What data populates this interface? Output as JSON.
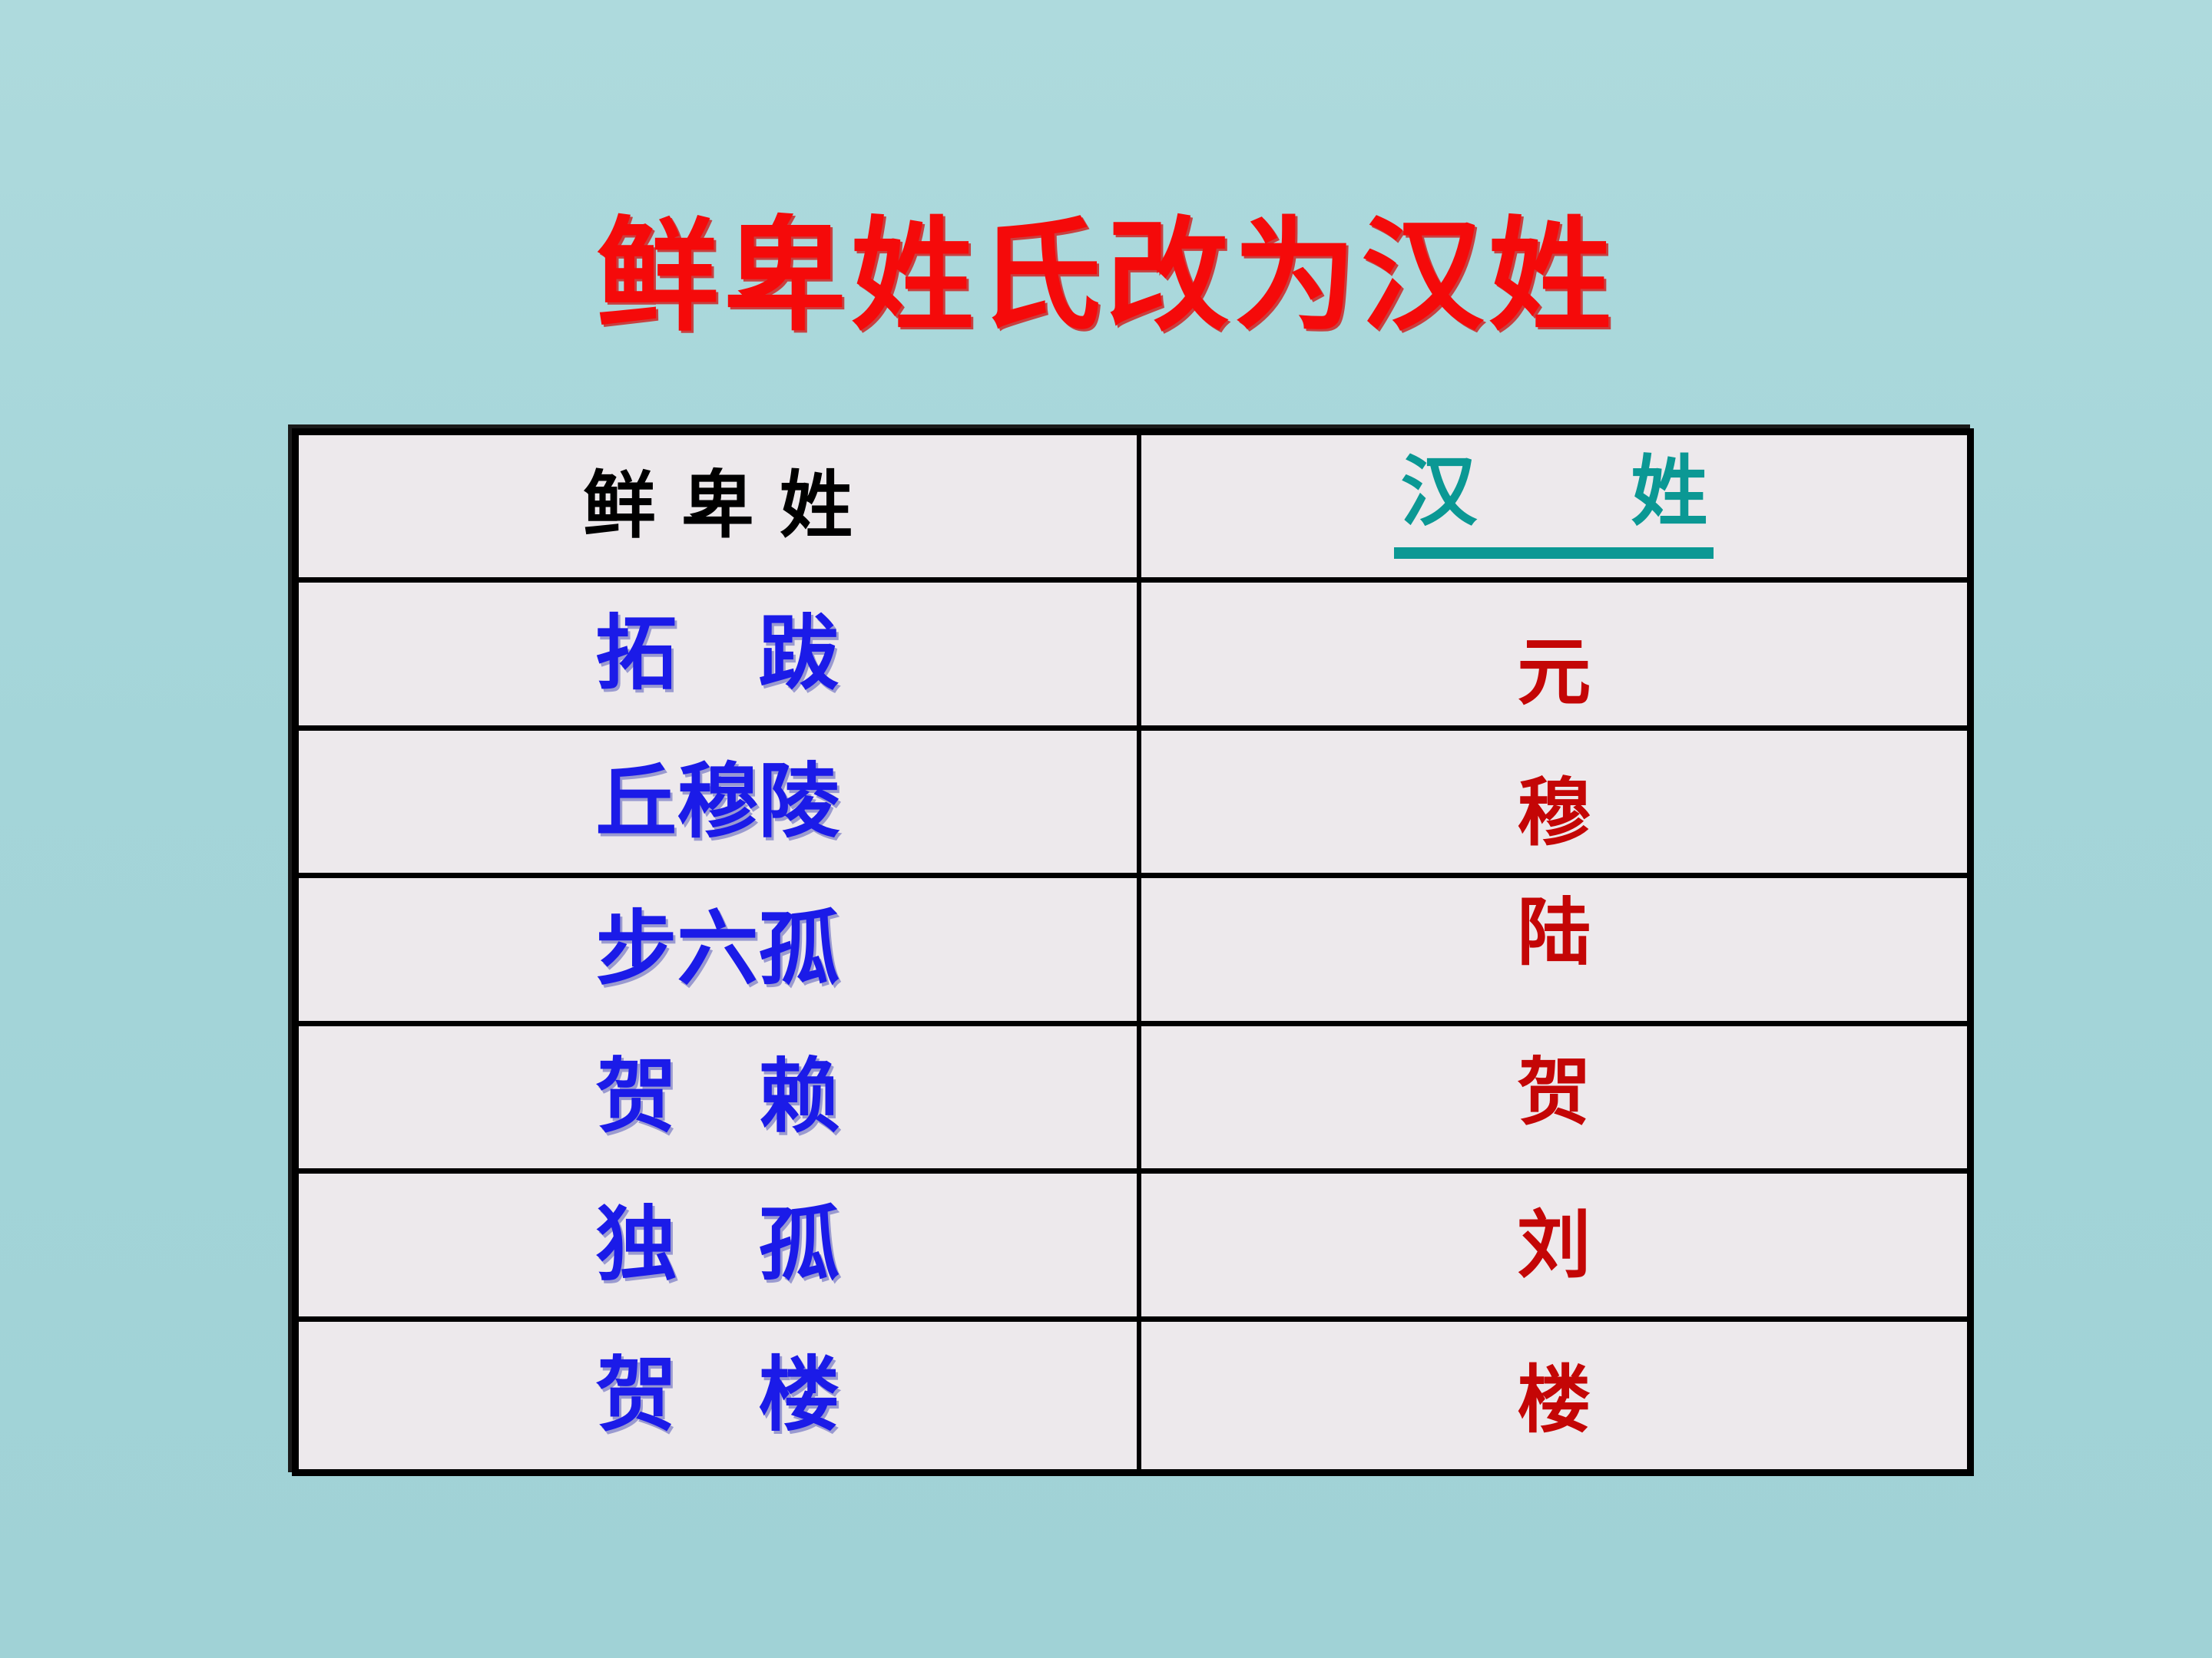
{
  "page": {
    "title": "鲜卑姓氏改为汉姓"
  },
  "table": {
    "header": {
      "xianbei": "鲜 卑 姓",
      "han": "汉　　姓"
    },
    "rows": [
      {
        "xianbei": "拓　跋",
        "han": "元"
      },
      {
        "xianbei": "丘穆陵",
        "han": "穆"
      },
      {
        "xianbei": "步六孤",
        "han": "陆"
      },
      {
        "xianbei": "贺　赖",
        "han": "贺"
      },
      {
        "xianbei": "独　孤",
        "han": "刘"
      },
      {
        "xianbei": "贺　楼",
        "han": "楼"
      }
    ]
  },
  "colors": {
    "background_teal": "#a4d5d9",
    "cell_background": "#ede9ec",
    "border_black": "#000000",
    "title_red": "#f50a0a",
    "xianbei_blue": "#1b1be8",
    "han_dark_red": "#c40606",
    "han_header_teal": "#0b9894"
  }
}
